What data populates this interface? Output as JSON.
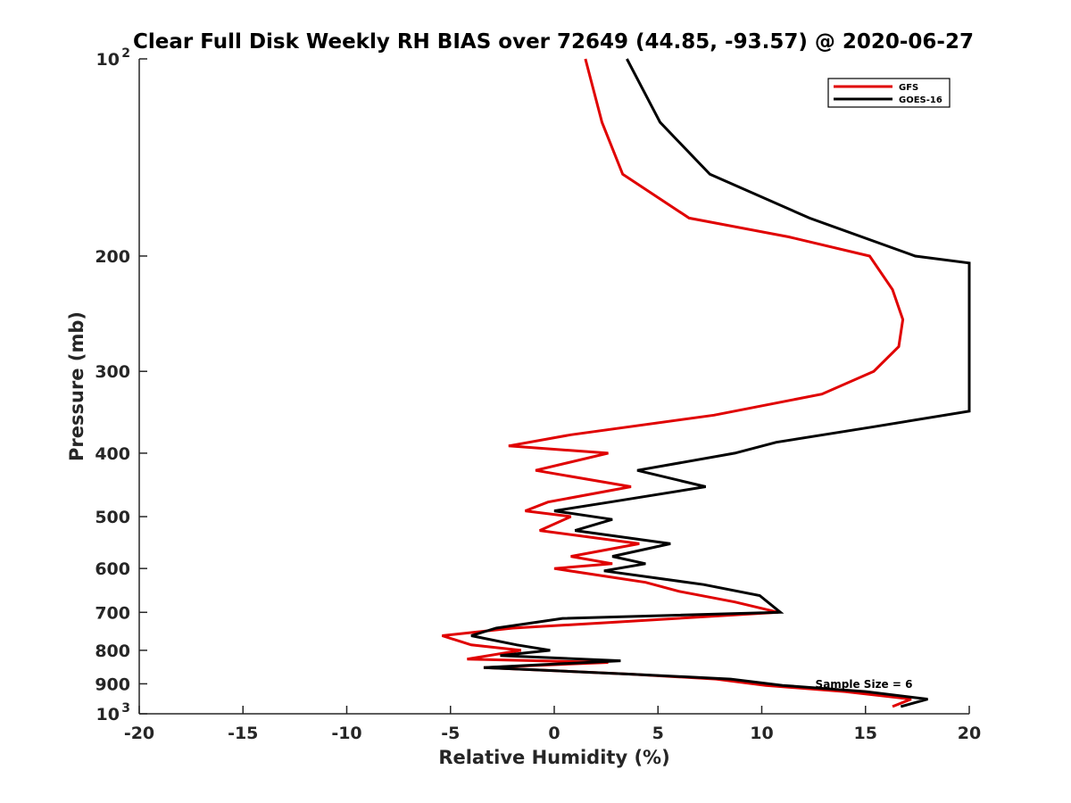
{
  "chart_data": {
    "type": "line",
    "title": "Clear Full Disk Weekly RH BIAS over 72649 (44.85, -93.57) @ 2020-06-27",
    "xlabel": "Relative Humidity (%)",
    "ylabel": "Pressure (mb)",
    "xlim": [
      -20,
      20
    ],
    "ylim": [
      100,
      1000
    ],
    "yscale": "log",
    "yaxis_reversed": true,
    "grid": false,
    "legend_position": "top-right",
    "x_ticks": [
      -20,
      -15,
      -10,
      -5,
      0,
      5,
      10,
      15,
      20
    ],
    "y_ticks": [
      {
        "value": 100,
        "label_base": "10",
        "label_exp": "2"
      },
      {
        "value": 200,
        "label": "200"
      },
      {
        "value": 300,
        "label": "300"
      },
      {
        "value": 400,
        "label": "400"
      },
      {
        "value": 500,
        "label": "500"
      },
      {
        "value": 600,
        "label": "600"
      },
      {
        "value": 700,
        "label": "700"
      },
      {
        "value": 800,
        "label": "800"
      },
      {
        "value": 900,
        "label": "900"
      },
      {
        "value": 1000,
        "label_base": "10",
        "label_exp": "3"
      }
    ],
    "annotation": "Sample Size = 6",
    "series": [
      {
        "name": "GFS",
        "color": "#e00000",
        "points": [
          [
            1.5,
            100
          ],
          [
            2.3,
            125
          ],
          [
            3.3,
            150
          ],
          [
            6.5,
            175
          ],
          [
            11.3,
            187
          ],
          [
            15.2,
            200
          ],
          [
            16.3,
            225
          ],
          [
            16.8,
            250
          ],
          [
            16.6,
            275
          ],
          [
            15.4,
            300
          ],
          [
            12.9,
            325
          ],
          [
            7.7,
            350
          ],
          [
            0.8,
            375
          ],
          [
            -2.2,
            390
          ],
          [
            2.6,
            400
          ],
          [
            -0.9,
            425
          ],
          [
            3.7,
            450
          ],
          [
            -0.3,
            475
          ],
          [
            -1.4,
            490
          ],
          [
            0.8,
            500
          ],
          [
            -0.7,
            525
          ],
          [
            4.1,
            550
          ],
          [
            0.8,
            575
          ],
          [
            2.8,
            590
          ],
          [
            0.0,
            600
          ],
          [
            4.4,
            630
          ],
          [
            6.0,
            650
          ],
          [
            8.7,
            675
          ],
          [
            10.8,
            700
          ],
          [
            2.8,
            725
          ],
          [
            -2.0,
            740
          ],
          [
            -5.4,
            760
          ],
          [
            -4.0,
            785
          ],
          [
            -1.6,
            800
          ],
          [
            -4.2,
            825
          ],
          [
            2.6,
            835
          ],
          [
            -3.4,
            850
          ],
          [
            3.7,
            870
          ],
          [
            7.8,
            885
          ],
          [
            10.2,
            905
          ],
          [
            14.0,
            925
          ],
          [
            17.2,
            950
          ],
          [
            16.3,
            975
          ]
        ]
      },
      {
        "name": "GOES-16",
        "color": "#000000",
        "points": [
          [
            3.5,
            100
          ],
          [
            5.1,
            125
          ],
          [
            7.5,
            150
          ],
          [
            12.3,
            175
          ],
          [
            17.4,
            200
          ],
          [
            20.0,
            205
          ],
          [
            20.0,
            345
          ],
          [
            15.3,
            365
          ],
          [
            10.7,
            385
          ],
          [
            8.7,
            400
          ],
          [
            4.0,
            425
          ],
          [
            7.3,
            450
          ],
          [
            2.7,
            475
          ],
          [
            0.0,
            490
          ],
          [
            2.8,
            505
          ],
          [
            1.0,
            525
          ],
          [
            5.6,
            550
          ],
          [
            2.8,
            575
          ],
          [
            4.4,
            590
          ],
          [
            2.4,
            605
          ],
          [
            7.2,
            635
          ],
          [
            9.9,
            660
          ],
          [
            10.9,
            700
          ],
          [
            0.4,
            715
          ],
          [
            -2.8,
            740
          ],
          [
            -4.0,
            760
          ],
          [
            -1.8,
            785
          ],
          [
            -0.2,
            800
          ],
          [
            -2.6,
            815
          ],
          [
            3.2,
            830
          ],
          [
            -3.4,
            850
          ],
          [
            3.7,
            870
          ],
          [
            8.5,
            885
          ],
          [
            11.0,
            905
          ],
          [
            15.0,
            925
          ],
          [
            18.0,
            950
          ],
          [
            16.7,
            975
          ]
        ]
      }
    ]
  }
}
